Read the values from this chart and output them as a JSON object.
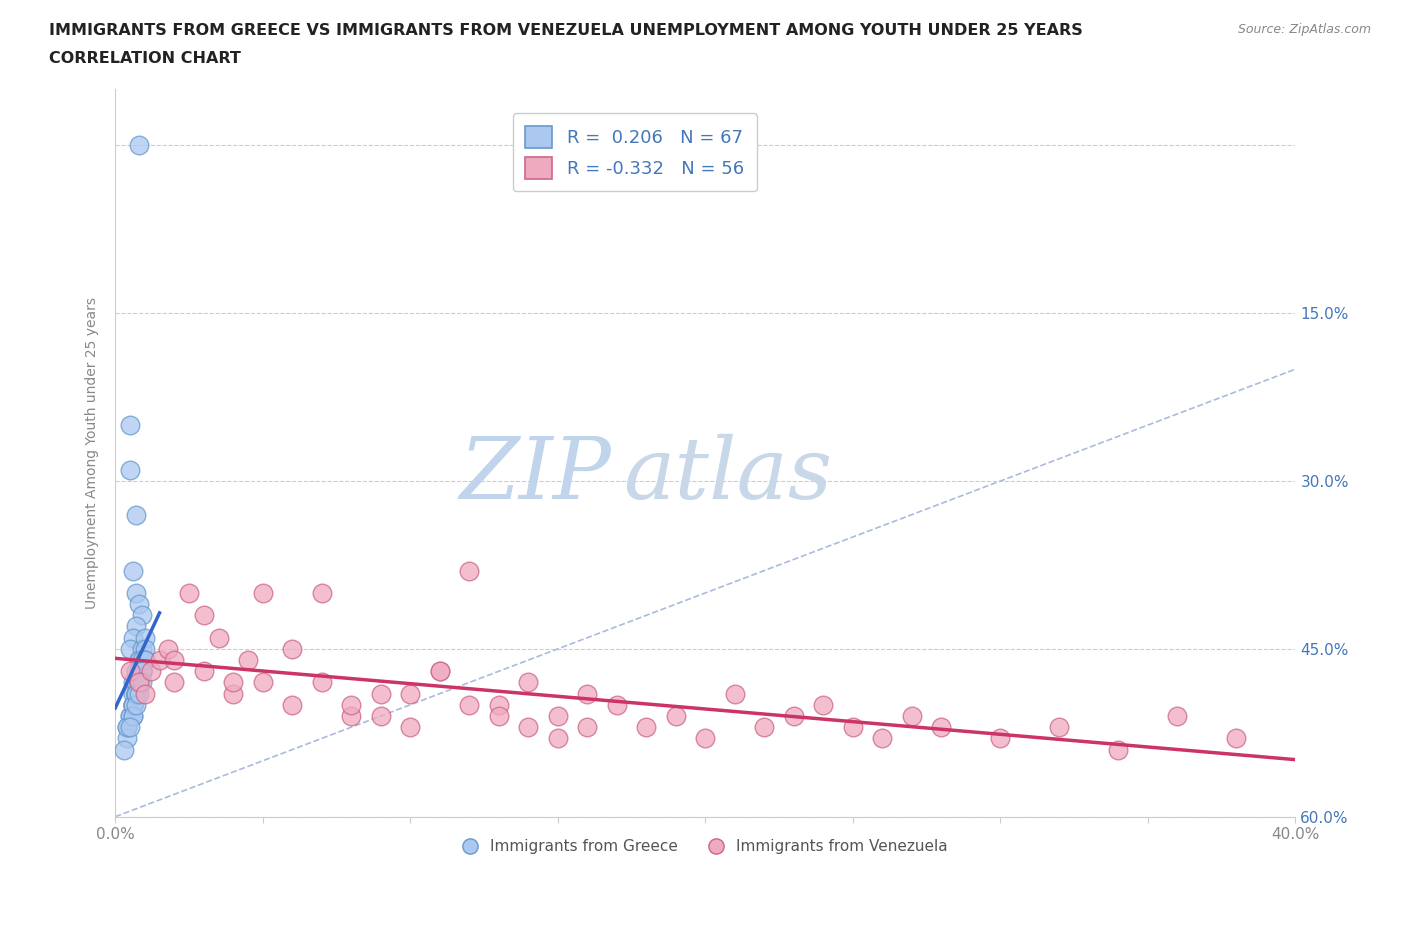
{
  "title_line1": "IMMIGRANTS FROM GREECE VS IMMIGRANTS FROM VENEZUELA UNEMPLOYMENT AMONG YOUTH UNDER 25 YEARS",
  "title_line2": "CORRELATION CHART",
  "source_text": "Source: ZipAtlas.com",
  "ylabel": "Unemployment Among Youth under 25 years",
  "xmin": 0.0,
  "xmax": 0.4,
  "ymin": 0.0,
  "ymax": 0.65,
  "xticks": [
    0.0,
    0.05,
    0.1,
    0.15,
    0.2,
    0.25,
    0.3,
    0.35,
    0.4
  ],
  "yticks": [
    0.0,
    0.15,
    0.3,
    0.45,
    0.6
  ],
  "greece_color": "#aac8f0",
  "greece_edge_color": "#6699cc",
  "venezuela_color": "#f0aac0",
  "venezuela_edge_color": "#cc6688",
  "trend_greece_color": "#3366cc",
  "trend_venezuela_color": "#cc3366",
  "diag_color": "#aabbdd",
  "legend_R_greece": "0.206",
  "legend_N_greece": "67",
  "legend_R_venezuela": "-0.332",
  "legend_N_venezuela": "56",
  "legend_label_greece": "Immigrants from Greece",
  "legend_label_venezuela": "Immigrants from Venezuela",
  "watermark_zip": "ZIP",
  "watermark_atlas": "atlas",
  "watermark_color_zip": "#c5d8ee",
  "watermark_color_atlas": "#c5d8ee",
  "background_color": "#ffffff",
  "grid_color": "#cccccc",
  "axis_label_color": "#4477bb",
  "tick_color": "#888888",
  "title_color": "#222222",
  "legend_text_color": "#4477bb",
  "greece_x": [
    0.008,
    0.005,
    0.005,
    0.007,
    0.006,
    0.007,
    0.008,
    0.009,
    0.007,
    0.006,
    0.005,
    0.01,
    0.009,
    0.008,
    0.007,
    0.006,
    0.007,
    0.008,
    0.009,
    0.01,
    0.006,
    0.005,
    0.007,
    0.008,
    0.009,
    0.008,
    0.007,
    0.006,
    0.005,
    0.008,
    0.009,
    0.01,
    0.007,
    0.006,
    0.008,
    0.009,
    0.007,
    0.004,
    0.006,
    0.008,
    0.009,
    0.01,
    0.007,
    0.006,
    0.008,
    0.004,
    0.007,
    0.009,
    0.008,
    0.006,
    0.007,
    0.008,
    0.009,
    0.01,
    0.006,
    0.004,
    0.007,
    0.008,
    0.009,
    0.006,
    0.007,
    0.008,
    0.005,
    0.007,
    0.003,
    0.008,
    0.009
  ],
  "greece_y": [
    0.6,
    0.35,
    0.31,
    0.27,
    0.22,
    0.2,
    0.19,
    0.18,
    0.17,
    0.16,
    0.15,
    0.14,
    0.13,
    0.12,
    0.11,
    0.12,
    0.13,
    0.14,
    0.15,
    0.16,
    0.1,
    0.09,
    0.11,
    0.12,
    0.13,
    0.12,
    0.11,
    0.1,
    0.09,
    0.14,
    0.13,
    0.15,
    0.12,
    0.11,
    0.13,
    0.14,
    0.12,
    0.08,
    0.1,
    0.12,
    0.13,
    0.14,
    0.11,
    0.1,
    0.12,
    0.07,
    0.11,
    0.13,
    0.12,
    0.09,
    0.11,
    0.12,
    0.13,
    0.14,
    0.1,
    0.08,
    0.11,
    0.12,
    0.13,
    0.09,
    0.11,
    0.12,
    0.08,
    0.1,
    0.06,
    0.11,
    0.12
  ],
  "venezuela_x": [
    0.005,
    0.008,
    0.01,
    0.012,
    0.015,
    0.018,
    0.02,
    0.025,
    0.03,
    0.035,
    0.04,
    0.045,
    0.05,
    0.06,
    0.07,
    0.08,
    0.09,
    0.1,
    0.11,
    0.12,
    0.13,
    0.14,
    0.15,
    0.16,
    0.17,
    0.18,
    0.19,
    0.2,
    0.21,
    0.22,
    0.23,
    0.24,
    0.25,
    0.26,
    0.27,
    0.28,
    0.3,
    0.32,
    0.34,
    0.36,
    0.38,
    0.02,
    0.03,
    0.04,
    0.05,
    0.06,
    0.07,
    0.08,
    0.09,
    0.1,
    0.11,
    0.12,
    0.13,
    0.14,
    0.15,
    0.16
  ],
  "venezuela_y": [
    0.13,
    0.12,
    0.11,
    0.13,
    0.14,
    0.15,
    0.12,
    0.2,
    0.18,
    0.16,
    0.11,
    0.14,
    0.12,
    0.1,
    0.2,
    0.09,
    0.11,
    0.08,
    0.13,
    0.22,
    0.1,
    0.12,
    0.09,
    0.11,
    0.1,
    0.08,
    0.09,
    0.07,
    0.11,
    0.08,
    0.09,
    0.1,
    0.08,
    0.07,
    0.09,
    0.08,
    0.07,
    0.08,
    0.06,
    0.09,
    0.07,
    0.14,
    0.13,
    0.12,
    0.2,
    0.15,
    0.12,
    0.1,
    0.09,
    0.11,
    0.13,
    0.1,
    0.09,
    0.08,
    0.07,
    0.08
  ]
}
